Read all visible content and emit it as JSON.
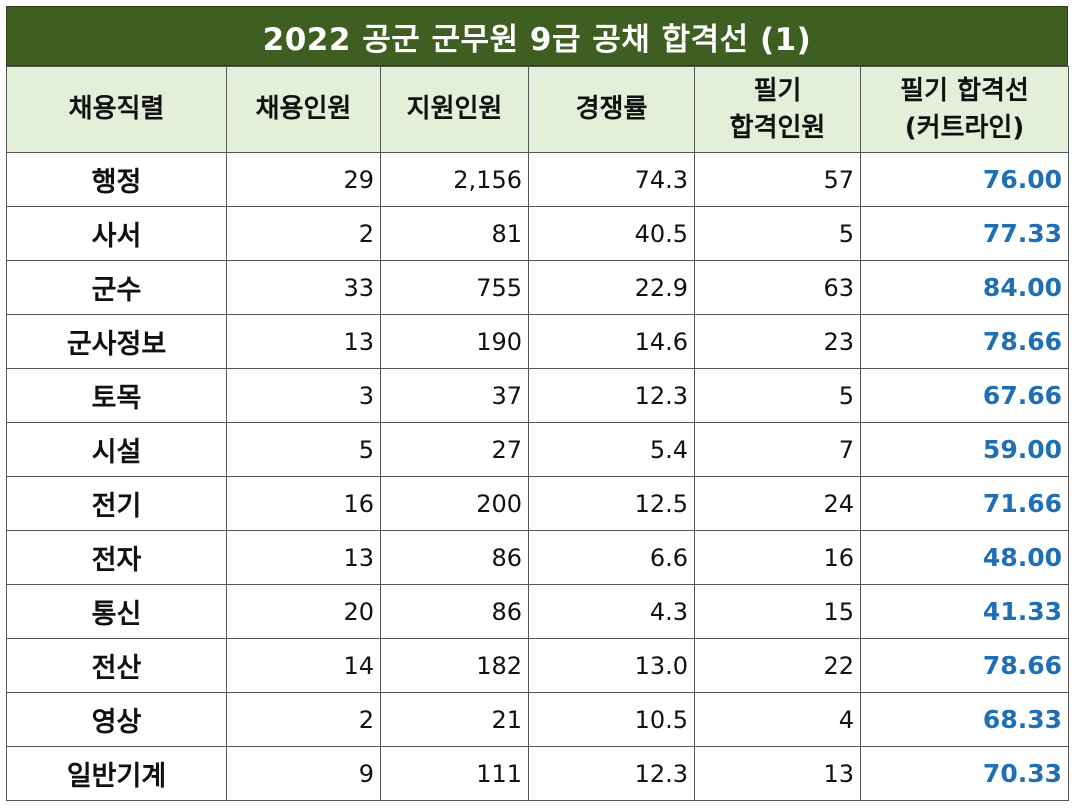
{
  "title": "2022 공군 군무원 9급 공채  합격선 (1)",
  "colors": {
    "title_bg": "#3f5e22",
    "header_bg": "#e3efd9",
    "cutline_text": "#1f6fb5"
  },
  "headers": {
    "category": "채용직렬",
    "hires": "채용인원",
    "applicants": "지원인원",
    "ratio": "경쟁률",
    "written_pass": [
      "필기",
      "합격인원"
    ],
    "written_cut": [
      "필기 합격선",
      "(커트라인)"
    ]
  },
  "rows": [
    {
      "category": "행정",
      "hires": "29",
      "applicants": "2,156",
      "ratio": "74.3",
      "written_pass": "57",
      "cutline": "76.00"
    },
    {
      "category": "사서",
      "hires": "2",
      "applicants": "81",
      "ratio": "40.5",
      "written_pass": "5",
      "cutline": "77.33"
    },
    {
      "category": "군수",
      "hires": "33",
      "applicants": "755",
      "ratio": "22.9",
      "written_pass": "63",
      "cutline": "84.00"
    },
    {
      "category": "군사정보",
      "hires": "13",
      "applicants": "190",
      "ratio": "14.6",
      "written_pass": "23",
      "cutline": "78.66"
    },
    {
      "category": "토목",
      "hires": "3",
      "applicants": "37",
      "ratio": "12.3",
      "written_pass": "5",
      "cutline": "67.66"
    },
    {
      "category": "시설",
      "hires": "5",
      "applicants": "27",
      "ratio": "5.4",
      "written_pass": "7",
      "cutline": "59.00"
    },
    {
      "category": "전기",
      "hires": "16",
      "applicants": "200",
      "ratio": "12.5",
      "written_pass": "24",
      "cutline": "71.66"
    },
    {
      "category": "전자",
      "hires": "13",
      "applicants": "86",
      "ratio": "6.6",
      "written_pass": "16",
      "cutline": "48.00"
    },
    {
      "category": "통신",
      "hires": "20",
      "applicants": "86",
      "ratio": "4.3",
      "written_pass": "15",
      "cutline": "41.33"
    },
    {
      "category": "전산",
      "hires": "14",
      "applicants": "182",
      "ratio": "13.0",
      "written_pass": "22",
      "cutline": "78.66"
    },
    {
      "category": "영상",
      "hires": "2",
      "applicants": "21",
      "ratio": "10.5",
      "written_pass": "4",
      "cutline": "68.33"
    },
    {
      "category": "일반기계",
      "hires": "9",
      "applicants": "111",
      "ratio": "12.3",
      "written_pass": "13",
      "cutline": "70.33"
    }
  ]
}
